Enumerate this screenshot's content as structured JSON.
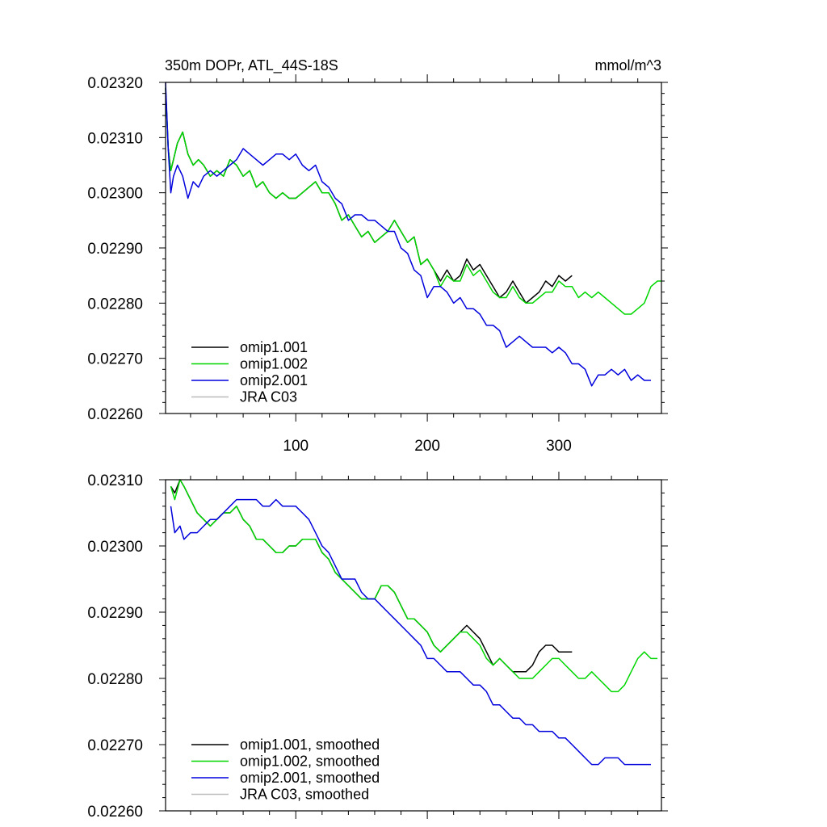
{
  "chart_data": [
    {
      "type": "line",
      "title": "350m DOPr, ATL_44S-18S",
      "units": "mmol/m^3",
      "xlim": [
        1,
        378
      ],
      "ylim": [
        0.0226,
        0.0232
      ],
      "x_ticks": [
        100,
        200,
        300
      ],
      "y_ticks": [
        "0.02260",
        "0.02270",
        "0.02280",
        "0.02290",
        "0.02300",
        "0.02310",
        "0.02320"
      ],
      "legend_position": "bottom-left",
      "series": [
        {
          "name": "omip1.001",
          "color": "#000000",
          "x": [
            1,
            3,
            5,
            7,
            10,
            14,
            18,
            22,
            26,
            30,
            35,
            40,
            45,
            50,
            55,
            60,
            65,
            70,
            75,
            80,
            85,
            90,
            95,
            100,
            105,
            110,
            115,
            120,
            125,
            130,
            135,
            140,
            145,
            150,
            155,
            160,
            165,
            170,
            175,
            180,
            185,
            190,
            195,
            200,
            205,
            210,
            215,
            220,
            225,
            230,
            235,
            240,
            245,
            250,
            255,
            260,
            265,
            270,
            275,
            280,
            285,
            290,
            295,
            300,
            305,
            310
          ],
          "y": [
            0.02319,
            0.02308,
            0.02304,
            0.02306,
            0.02309,
            0.02311,
            0.02307,
            0.02305,
            0.02306,
            0.02305,
            0.02303,
            0.02304,
            0.02303,
            0.02306,
            0.02305,
            0.02303,
            0.02304,
            0.02301,
            0.02302,
            0.023,
            0.02299,
            0.023,
            0.02299,
            0.02299,
            0.023,
            0.02301,
            0.02302,
            0.023,
            0.023,
            0.02298,
            0.02295,
            0.02296,
            0.02294,
            0.02292,
            0.02293,
            0.02291,
            0.02292,
            0.02293,
            0.02295,
            0.02293,
            0.02291,
            0.02292,
            0.02287,
            0.02288,
            0.02286,
            0.02284,
            0.02286,
            0.02284,
            0.02285,
            0.02288,
            0.02286,
            0.02287,
            0.02285,
            0.02283,
            0.02281,
            0.02282,
            0.02284,
            0.02282,
            0.0228,
            0.02281,
            0.02282,
            0.02284,
            0.02283,
            0.02285,
            0.02284,
            0.02285
          ]
        },
        {
          "name": "omip1.002",
          "color": "#00d600",
          "x": [
            1,
            3,
            5,
            7,
            10,
            14,
            18,
            22,
            26,
            30,
            35,
            40,
            45,
            50,
            55,
            60,
            65,
            70,
            75,
            80,
            85,
            90,
            95,
            100,
            105,
            110,
            115,
            120,
            125,
            130,
            135,
            140,
            145,
            150,
            155,
            160,
            165,
            170,
            175,
            180,
            185,
            190,
            195,
            200,
            205,
            210,
            215,
            220,
            225,
            230,
            235,
            240,
            245,
            250,
            255,
            260,
            265,
            270,
            275,
            280,
            285,
            290,
            295,
            300,
            305,
            310,
            315,
            320,
            325,
            330,
            335,
            340,
            345,
            350,
            355,
            360,
            365,
            370,
            375,
            378
          ],
          "y": [
            0.02319,
            0.02308,
            0.02304,
            0.02306,
            0.02309,
            0.02311,
            0.02307,
            0.02305,
            0.02306,
            0.02305,
            0.02303,
            0.02304,
            0.02303,
            0.02306,
            0.02305,
            0.02303,
            0.02304,
            0.02301,
            0.02302,
            0.023,
            0.02299,
            0.023,
            0.02299,
            0.02299,
            0.023,
            0.02301,
            0.02302,
            0.023,
            0.023,
            0.02298,
            0.02295,
            0.02296,
            0.02294,
            0.02292,
            0.02293,
            0.02291,
            0.02292,
            0.02293,
            0.02295,
            0.02293,
            0.02291,
            0.02292,
            0.02287,
            0.02288,
            0.02286,
            0.02283,
            0.02285,
            0.02284,
            0.02284,
            0.02287,
            0.02285,
            0.02286,
            0.02284,
            0.02282,
            0.02281,
            0.02281,
            0.02283,
            0.02281,
            0.0228,
            0.0228,
            0.02281,
            0.02282,
            0.02282,
            0.02284,
            0.02283,
            0.02283,
            0.02281,
            0.02282,
            0.02281,
            0.02282,
            0.02281,
            0.0228,
            0.02279,
            0.02278,
            0.02278,
            0.02279,
            0.0228,
            0.02283,
            0.02284,
            0.02284
          ]
        },
        {
          "name": "omip2.001",
          "color": "#0000dd",
          "x": [
            1,
            3,
            5,
            7,
            10,
            14,
            18,
            22,
            26,
            30,
            35,
            40,
            45,
            50,
            55,
            60,
            65,
            70,
            75,
            80,
            85,
            90,
            95,
            100,
            105,
            110,
            115,
            120,
            125,
            130,
            135,
            140,
            145,
            150,
            155,
            160,
            165,
            170,
            175,
            180,
            185,
            190,
            195,
            200,
            205,
            210,
            215,
            220,
            225,
            230,
            235,
            240,
            245,
            250,
            255,
            260,
            265,
            270,
            275,
            280,
            285,
            290,
            295,
            300,
            305,
            310,
            315,
            320,
            325,
            330,
            335,
            340,
            345,
            350,
            355,
            360,
            365,
            370
          ],
          "y": [
            0.0232,
            0.02308,
            0.023,
            0.02303,
            0.02305,
            0.02303,
            0.02299,
            0.02302,
            0.02301,
            0.02303,
            0.02304,
            0.02303,
            0.02304,
            0.02305,
            0.02306,
            0.02308,
            0.02307,
            0.02306,
            0.02305,
            0.02306,
            0.02307,
            0.02307,
            0.02306,
            0.02307,
            0.02305,
            0.02304,
            0.02305,
            0.02302,
            0.02301,
            0.02299,
            0.02298,
            0.02295,
            0.02296,
            0.02296,
            0.02295,
            0.02295,
            0.02294,
            0.02293,
            0.02293,
            0.0229,
            0.02289,
            0.02286,
            0.02285,
            0.02281,
            0.02283,
            0.02283,
            0.02282,
            0.0228,
            0.02281,
            0.02279,
            0.02279,
            0.02278,
            0.02276,
            0.02276,
            0.02275,
            0.02272,
            0.02273,
            0.02274,
            0.02273,
            0.02272,
            0.02272,
            0.02272,
            0.02271,
            0.02272,
            0.02271,
            0.02269,
            0.02269,
            0.02268,
            0.02265,
            0.02267,
            0.02267,
            0.02268,
            0.02267,
            0.02268,
            0.02266,
            0.02267,
            0.02266,
            0.02266
          ]
        },
        {
          "name": "JRA C03",
          "color": "#bbbbbb",
          "x": [],
          "y": []
        }
      ]
    },
    {
      "type": "line",
      "title": "",
      "xlim": [
        1,
        378
      ],
      "ylim": [
        0.0226,
        0.0231
      ],
      "y_ticks": [
        "0.02260",
        "0.02270",
        "0.02280",
        "0.02290",
        "0.02300",
        "0.02310"
      ],
      "legend_position": "bottom-left",
      "series": [
        {
          "name": "omip1.001, smoothed",
          "color": "#000000",
          "x": [
            5,
            8,
            12,
            15,
            20,
            25,
            30,
            35,
            40,
            45,
            50,
            55,
            60,
            65,
            70,
            75,
            80,
            85,
            90,
            95,
            100,
            105,
            110,
            115,
            120,
            125,
            130,
            135,
            140,
            145,
            150,
            155,
            160,
            165,
            170,
            175,
            180,
            185,
            190,
            195,
            200,
            205,
            210,
            215,
            220,
            225,
            230,
            235,
            240,
            245,
            250,
            255,
            260,
            265,
            270,
            275,
            280,
            285,
            290,
            295,
            300,
            305,
            310
          ],
          "y": [
            0.02309,
            0.02308,
            0.0231,
            0.02309,
            0.02307,
            0.02305,
            0.02304,
            0.02303,
            0.02304,
            0.02305,
            0.02305,
            0.02306,
            0.02304,
            0.02303,
            0.02301,
            0.02301,
            0.023,
            0.02299,
            0.02299,
            0.023,
            0.023,
            0.02301,
            0.02301,
            0.02301,
            0.02299,
            0.02298,
            0.02296,
            0.02295,
            0.02294,
            0.02293,
            0.02292,
            0.02292,
            0.02292,
            0.02294,
            0.02294,
            0.02293,
            0.02291,
            0.02289,
            0.02289,
            0.02288,
            0.02287,
            0.02285,
            0.02284,
            0.02285,
            0.02286,
            0.02287,
            0.02288,
            0.02287,
            0.02286,
            0.02284,
            0.02282,
            0.02283,
            0.02282,
            0.02281,
            0.02281,
            0.02281,
            0.02282,
            0.02284,
            0.02285,
            0.02285,
            0.02284,
            0.02284,
            0.02284
          ]
        },
        {
          "name": "omip1.002, smoothed",
          "color": "#00d600",
          "x": [
            5,
            8,
            12,
            15,
            20,
            25,
            30,
            35,
            40,
            45,
            50,
            55,
            60,
            65,
            70,
            75,
            80,
            85,
            90,
            95,
            100,
            105,
            110,
            115,
            120,
            125,
            130,
            135,
            140,
            145,
            150,
            155,
            160,
            165,
            170,
            175,
            180,
            185,
            190,
            195,
            200,
            205,
            210,
            215,
            220,
            225,
            230,
            235,
            240,
            245,
            250,
            255,
            260,
            265,
            270,
            275,
            280,
            285,
            290,
            295,
            300,
            305,
            310,
            315,
            320,
            325,
            330,
            335,
            340,
            345,
            350,
            355,
            360,
            365,
            370,
            375
          ],
          "y": [
            0.02309,
            0.02307,
            0.0231,
            0.02309,
            0.02307,
            0.02305,
            0.02304,
            0.02303,
            0.02304,
            0.02305,
            0.02305,
            0.02306,
            0.02304,
            0.02303,
            0.02301,
            0.02301,
            0.023,
            0.02299,
            0.02299,
            0.023,
            0.023,
            0.02301,
            0.02301,
            0.02301,
            0.02299,
            0.02298,
            0.02296,
            0.02295,
            0.02294,
            0.02293,
            0.02292,
            0.02292,
            0.02292,
            0.02294,
            0.02294,
            0.02293,
            0.02291,
            0.02289,
            0.02289,
            0.02288,
            0.02287,
            0.02285,
            0.02284,
            0.02285,
            0.02286,
            0.02287,
            0.02287,
            0.02286,
            0.02285,
            0.02283,
            0.02282,
            0.02283,
            0.02282,
            0.02281,
            0.0228,
            0.0228,
            0.0228,
            0.02281,
            0.02282,
            0.02283,
            0.02283,
            0.02282,
            0.02281,
            0.0228,
            0.0228,
            0.02281,
            0.0228,
            0.02279,
            0.02278,
            0.02278,
            0.02279,
            0.02281,
            0.02283,
            0.02284,
            0.02283,
            0.02283
          ]
        },
        {
          "name": "omip2.001, smoothed",
          "color": "#0000dd",
          "x": [
            5,
            8,
            12,
            15,
            20,
            25,
            30,
            35,
            40,
            45,
            50,
            55,
            60,
            65,
            70,
            75,
            80,
            85,
            90,
            95,
            100,
            105,
            110,
            115,
            120,
            125,
            130,
            135,
            140,
            145,
            150,
            155,
            160,
            165,
            170,
            175,
            180,
            185,
            190,
            195,
            200,
            205,
            210,
            215,
            220,
            225,
            230,
            235,
            240,
            245,
            250,
            255,
            260,
            265,
            270,
            275,
            280,
            285,
            290,
            295,
            300,
            305,
            310,
            315,
            320,
            325,
            330,
            335,
            340,
            345,
            350,
            355,
            360,
            365,
            370
          ],
          "y": [
            0.02306,
            0.02302,
            0.02303,
            0.02301,
            0.02302,
            0.02302,
            0.02303,
            0.02304,
            0.02304,
            0.02305,
            0.02306,
            0.02307,
            0.02307,
            0.02307,
            0.02307,
            0.02306,
            0.02306,
            0.02307,
            0.02306,
            0.02306,
            0.02306,
            0.02305,
            0.02304,
            0.02302,
            0.023,
            0.02299,
            0.02297,
            0.02295,
            0.02295,
            0.02295,
            0.02293,
            0.02292,
            0.02292,
            0.02291,
            0.0229,
            0.02289,
            0.02288,
            0.02287,
            0.02286,
            0.02285,
            0.02283,
            0.02283,
            0.02282,
            0.02281,
            0.02281,
            0.02281,
            0.0228,
            0.02279,
            0.02279,
            0.02278,
            0.02276,
            0.02276,
            0.02275,
            0.02274,
            0.02274,
            0.02273,
            0.02273,
            0.02272,
            0.02272,
            0.02272,
            0.02271,
            0.02271,
            0.0227,
            0.02269,
            0.02268,
            0.02267,
            0.02267,
            0.02268,
            0.02268,
            0.02268,
            0.02267,
            0.02267,
            0.02267,
            0.02267,
            0.02267
          ]
        },
        {
          "name": "JRA C03, smoothed",
          "color": "#bbbbbb",
          "x": [],
          "y": []
        }
      ]
    }
  ]
}
